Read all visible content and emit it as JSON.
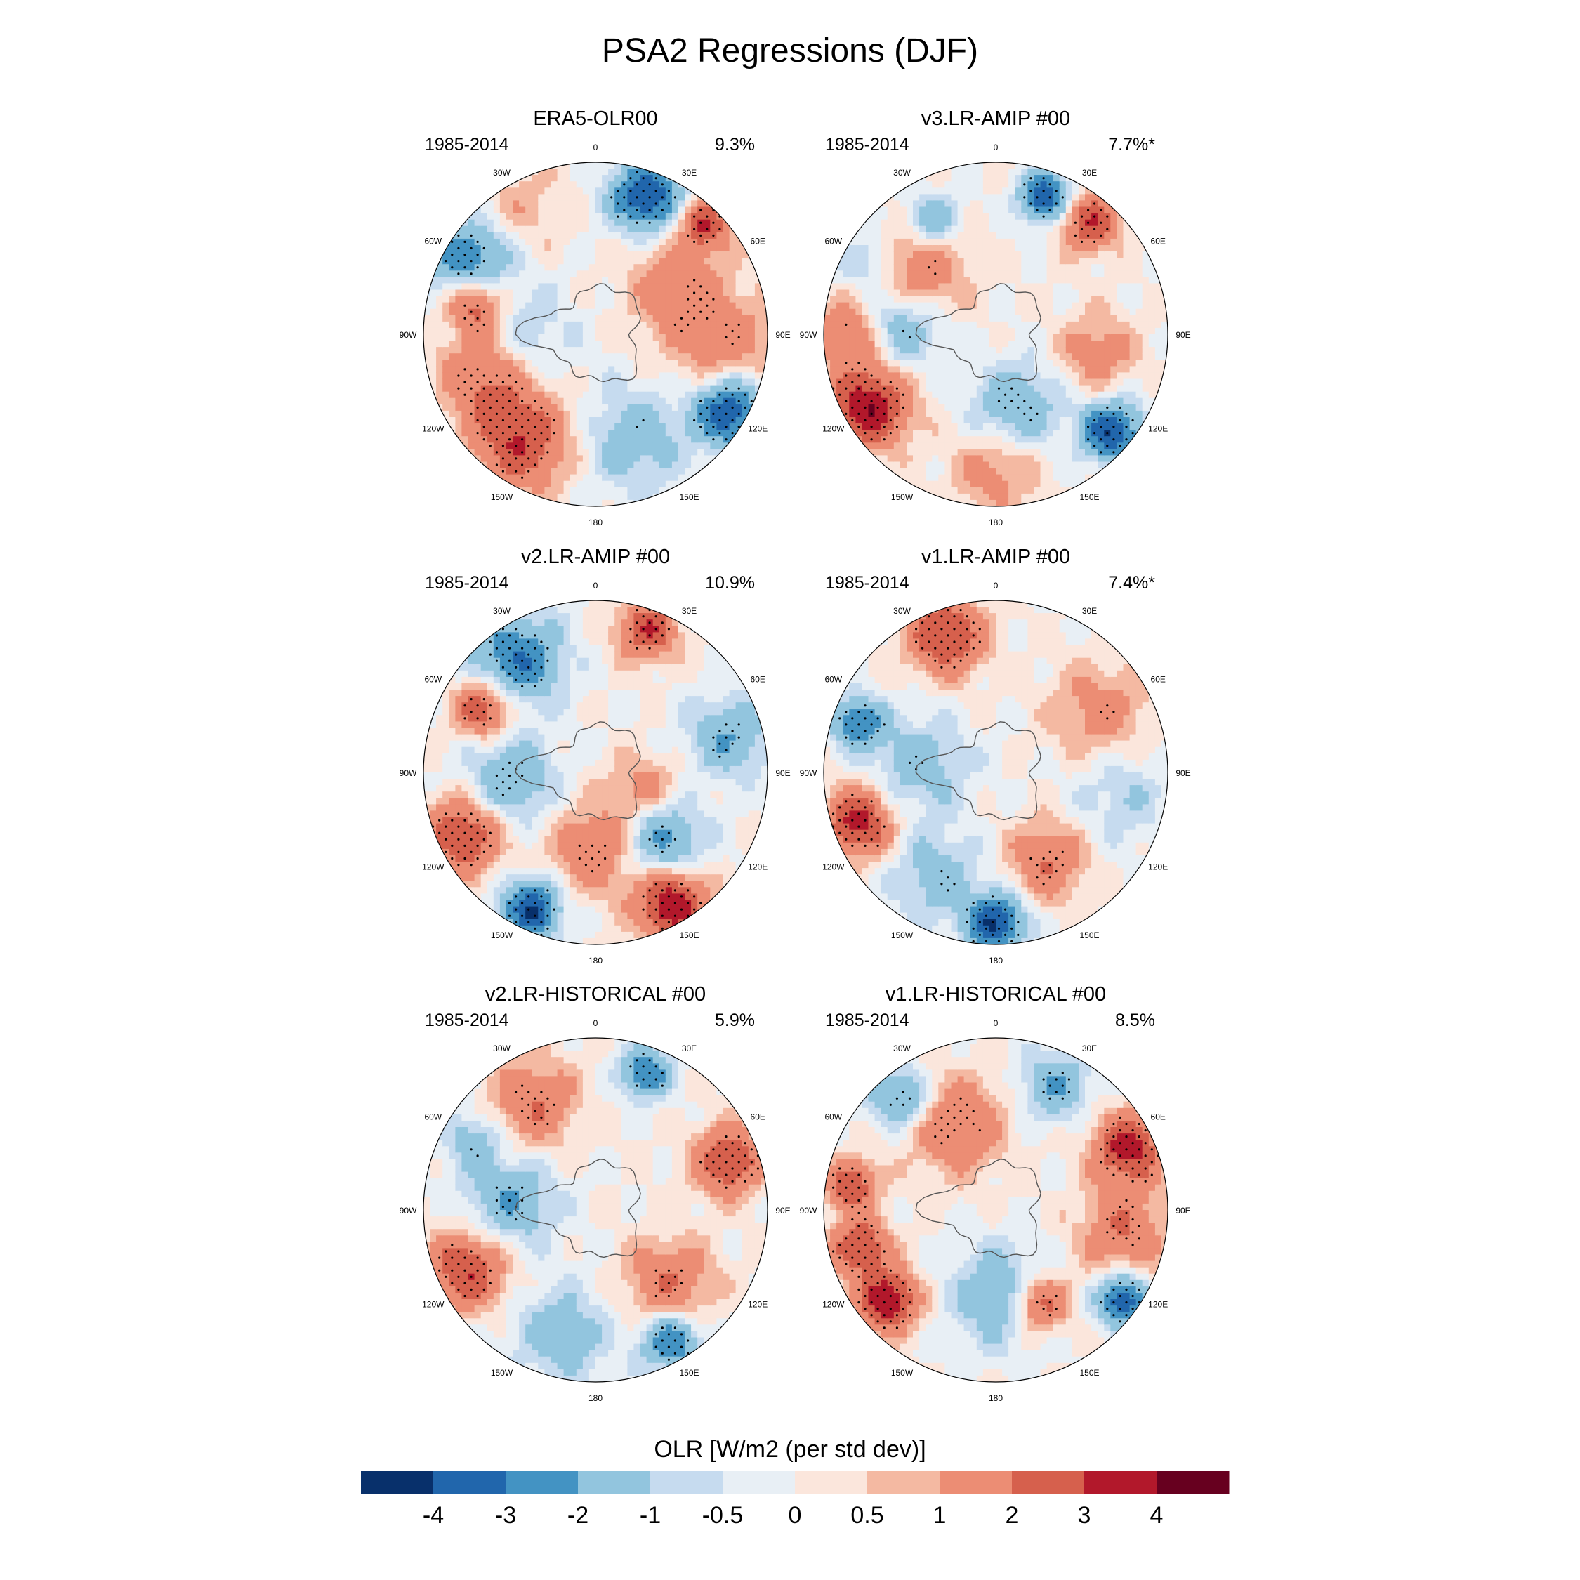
{
  "chart_data": {
    "type": "polar-contour-panel",
    "title": "PSA2 Regressions (DJF)",
    "colorbar": {
      "title": "OLR [W/m2 (per std dev)]",
      "levels": [
        "-4",
        "-3",
        "-2",
        "-1",
        "-0.5",
        "0",
        "0.5",
        "1",
        "2",
        "3",
        "4"
      ],
      "colors": [
        "#08306b",
        "#2166ac",
        "#4393c3",
        "#92c5de",
        "#c6dbef",
        "#e8eff5",
        "#fbe6dc",
        "#f4b9a2",
        "#ec8d74",
        "#d6604d",
        "#b2182b",
        "#67001f"
      ]
    },
    "lon_labels": [
      "0",
      "30E",
      "60E",
      "90E",
      "120E",
      "150E",
      "180",
      "150W",
      "120W",
      "90W",
      "60W",
      "30W"
    ],
    "panels": [
      {
        "title": "ERA5-OLR00",
        "period": "1985-2014",
        "variance": "9.3%",
        "blobs": [
          {
            "lon": 300,
            "r": 0.85,
            "v": -3,
            "s": 0.16
          },
          {
            "lon": 330,
            "r": 0.85,
            "v": 0.8,
            "s": 0.18
          },
          {
            "lon": 20,
            "r": 0.85,
            "v": -4,
            "s": 0.14
          },
          {
            "lon": 45,
            "r": 0.9,
            "v": 3,
            "s": 0.1
          },
          {
            "lon": 60,
            "r": 0.55,
            "v": 1.5,
            "s": 0.2
          },
          {
            "lon": 95,
            "r": 0.75,
            "v": 1.5,
            "s": 0.22
          },
          {
            "lon": 120,
            "r": 0.9,
            "v": -4,
            "s": 0.14
          },
          {
            "lon": 160,
            "r": 0.65,
            "v": -1.5,
            "s": 0.22
          },
          {
            "lon": 215,
            "r": 0.75,
            "v": 3,
            "s": 0.2
          },
          {
            "lon": 250,
            "r": 0.7,
            "v": 2,
            "s": 0.18
          },
          {
            "lon": 285,
            "r": 0.72,
            "v": 3,
            "s": 0.12
          },
          {
            "lon": 270,
            "r": 0.4,
            "v": -1,
            "s": 0.2
          }
        ]
      },
      {
        "title": "v3.LR-AMIP  #00",
        "period": "1985-2014",
        "variance": "7.7%*",
        "blobs": [
          {
            "lon": 20,
            "r": 0.85,
            "v": -4,
            "s": 0.1
          },
          {
            "lon": 40,
            "r": 0.85,
            "v": 3,
            "s": 0.12
          },
          {
            "lon": 310,
            "r": 0.6,
            "v": 2,
            "s": 0.2
          },
          {
            "lon": 330,
            "r": 0.75,
            "v": -2,
            "s": 0.12
          },
          {
            "lon": 240,
            "r": 0.85,
            "v": 4,
            "s": 0.16
          },
          {
            "lon": 275,
            "r": 0.55,
            "v": -2,
            "s": 0.16
          },
          {
            "lon": 270,
            "r": 0.85,
            "v": 2,
            "s": 0.14
          },
          {
            "lon": 130,
            "r": 0.88,
            "v": -4,
            "s": 0.12
          },
          {
            "lon": 165,
            "r": 0.45,
            "v": -2,
            "s": 0.18
          },
          {
            "lon": 180,
            "r": 0.78,
            "v": 1.5,
            "s": 0.18
          },
          {
            "lon": 100,
            "r": 0.6,
            "v": 1.5,
            "s": 0.16
          },
          {
            "lon": 300,
            "r": 0.85,
            "v": -1.5,
            "s": 0.12
          }
        ]
      },
      {
        "title": "v2.LR-AMIP  #00",
        "period": "1985-2014",
        "variance": "10.9%",
        "blobs": [
          {
            "lon": 325,
            "r": 0.8,
            "v": -3,
            "s": 0.18
          },
          {
            "lon": 20,
            "r": 0.88,
            "v": 3,
            "s": 0.12
          },
          {
            "lon": 75,
            "r": 0.8,
            "v": -2,
            "s": 0.16
          },
          {
            "lon": 300,
            "r": 0.75,
            "v": 3,
            "s": 0.12
          },
          {
            "lon": 245,
            "r": 0.85,
            "v": 3,
            "s": 0.16
          },
          {
            "lon": 265,
            "r": 0.5,
            "v": -2,
            "s": 0.18
          },
          {
            "lon": 150,
            "r": 0.88,
            "v": 4,
            "s": 0.14
          },
          {
            "lon": 205,
            "r": 0.88,
            "v": -4,
            "s": 0.12
          },
          {
            "lon": 180,
            "r": 0.45,
            "v": 2,
            "s": 0.18
          },
          {
            "lon": 135,
            "r": 0.55,
            "v": -2.5,
            "s": 0.16
          },
          {
            "lon": 110,
            "r": 0.3,
            "v": 1.5,
            "s": 0.14
          }
        ]
      },
      {
        "title": "v1.LR-AMIP  #00",
        "period": "1985-2014",
        "variance": "7.4%*",
        "blobs": [
          {
            "lon": 340,
            "r": 0.85,
            "v": 3,
            "s": 0.16
          },
          {
            "lon": 250,
            "r": 0.85,
            "v": 3.5,
            "s": 0.14
          },
          {
            "lon": 290,
            "r": 0.85,
            "v": -3,
            "s": 0.1
          },
          {
            "lon": 275,
            "r": 0.45,
            "v": -1.5,
            "s": 0.2
          },
          {
            "lon": 180,
            "r": 0.88,
            "v": -4,
            "s": 0.12
          },
          {
            "lon": 150,
            "r": 0.6,
            "v": 2,
            "s": 0.16
          },
          {
            "lon": 60,
            "r": 0.7,
            "v": 1.5,
            "s": 0.2
          },
          {
            "lon": 100,
            "r": 0.75,
            "v": -1,
            "s": 0.2
          },
          {
            "lon": 210,
            "r": 0.7,
            "v": -1.5,
            "s": 0.18
          }
        ]
      },
      {
        "title": "v2.LR-HISTORICAL  #00",
        "period": "1985-2014",
        "variance": "5.9%",
        "blobs": [
          {
            "lon": 20,
            "r": 0.85,
            "v": -3,
            "s": 0.1
          },
          {
            "lon": 70,
            "r": 0.82,
            "v": 3,
            "s": 0.14
          },
          {
            "lon": 330,
            "r": 0.72,
            "v": 2,
            "s": 0.18
          },
          {
            "lon": 245,
            "r": 0.82,
            "v": 3,
            "s": 0.16
          },
          {
            "lon": 275,
            "r": 0.5,
            "v": -2,
            "s": 0.18
          },
          {
            "lon": 135,
            "r": 0.6,
            "v": 2,
            "s": 0.18
          },
          {
            "lon": 150,
            "r": 0.88,
            "v": -3,
            "s": 0.12
          },
          {
            "lon": 195,
            "r": 0.75,
            "v": -1.5,
            "s": 0.2
          },
          {
            "lon": 300,
            "r": 0.82,
            "v": -1.5,
            "s": 0.12
          }
        ]
      },
      {
        "title": "v1.LR-HISTORICAL  #00",
        "period": "1985-2014",
        "variance": "8.5%",
        "blobs": [
          {
            "lon": 320,
            "r": 0.85,
            "v": -2.5,
            "s": 0.12
          },
          {
            "lon": 335,
            "r": 0.55,
            "v": 2,
            "s": 0.2
          },
          {
            "lon": 25,
            "r": 0.8,
            "v": -2,
            "s": 0.14
          },
          {
            "lon": 65,
            "r": 0.85,
            "v": 3.5,
            "s": 0.14
          },
          {
            "lon": 100,
            "r": 0.75,
            "v": 2,
            "s": 0.18
          },
          {
            "lon": 125,
            "r": 0.9,
            "v": -4,
            "s": 0.1
          },
          {
            "lon": 155,
            "r": 0.6,
            "v": 3,
            "s": 0.12
          },
          {
            "lon": 175,
            "r": 0.5,
            "v": -2,
            "s": 0.2
          },
          {
            "lon": 230,
            "r": 0.82,
            "v": 4,
            "s": 0.12
          },
          {
            "lon": 255,
            "r": 0.82,
            "v": 3,
            "s": 0.12
          },
          {
            "lon": 280,
            "r": 0.85,
            "v": 3,
            "s": 0.1
          }
        ]
      }
    ]
  }
}
